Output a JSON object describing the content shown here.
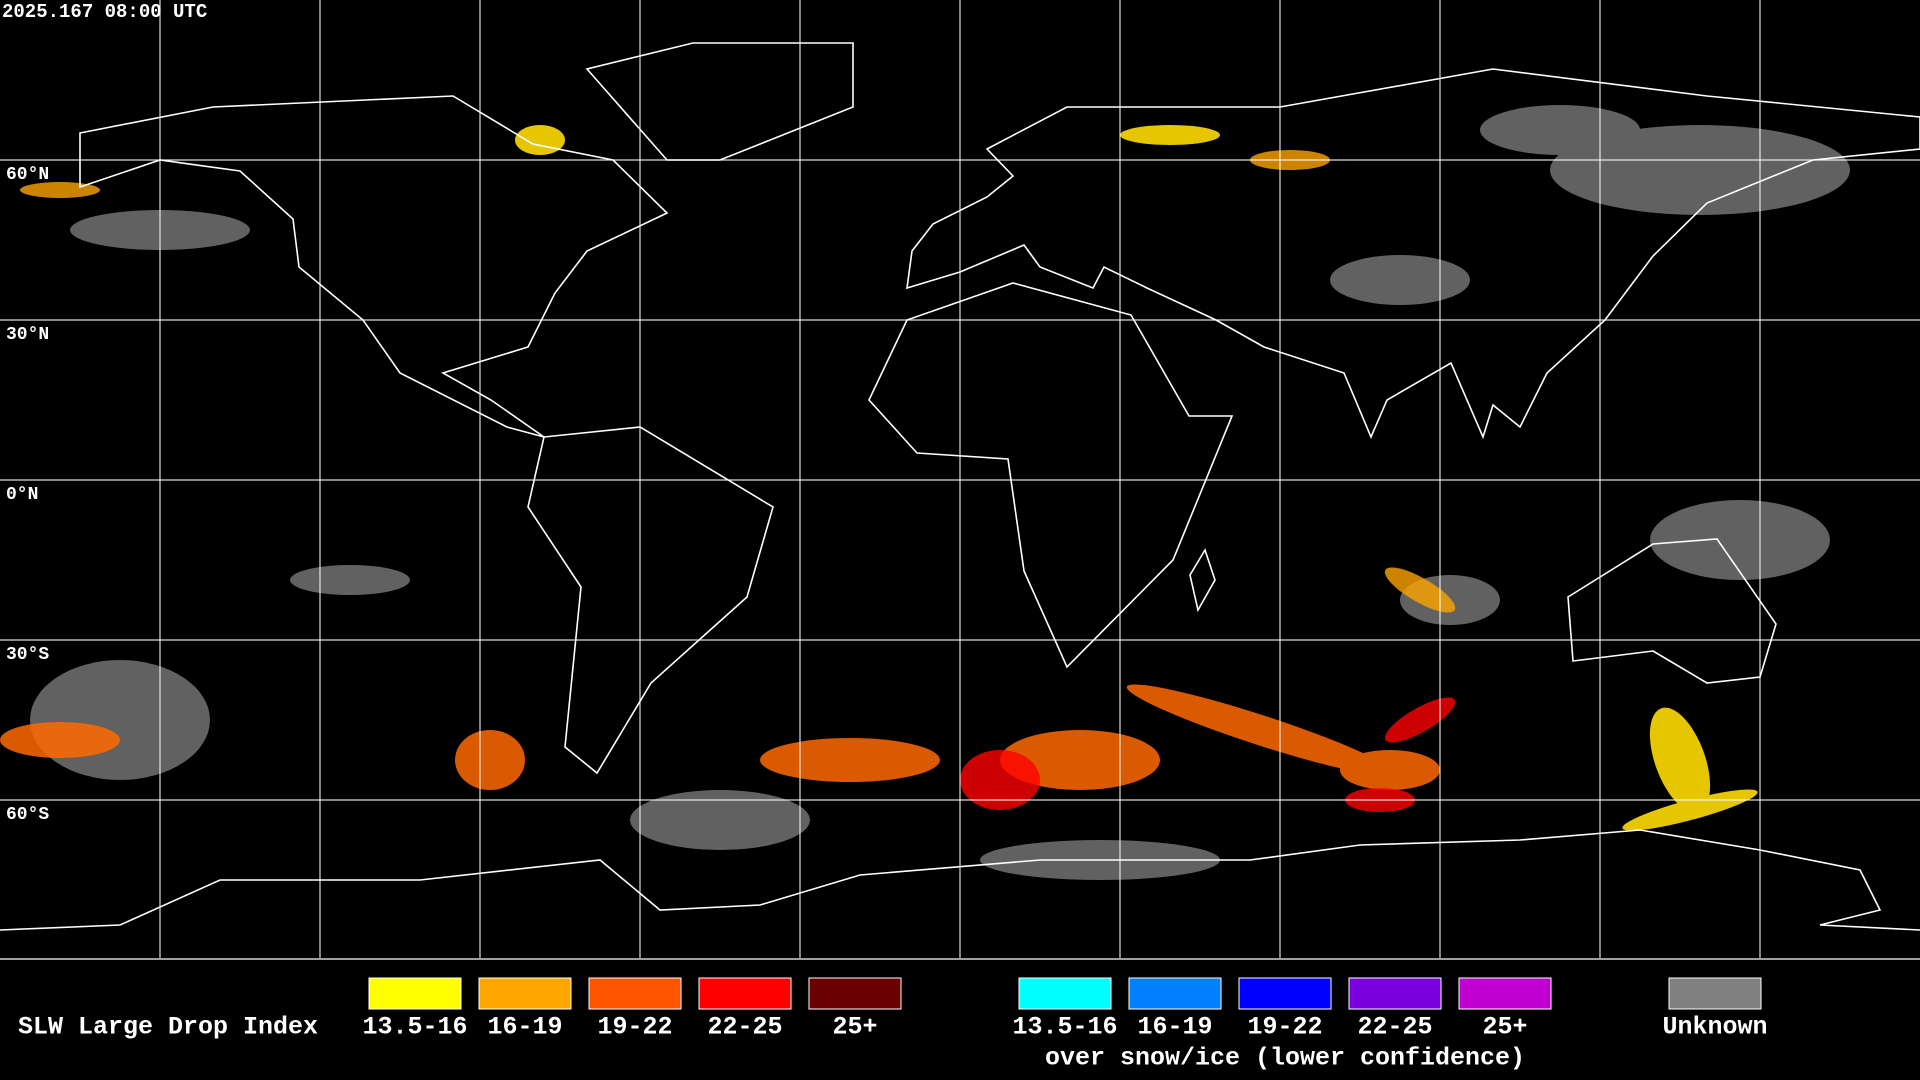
{
  "timestamp": "2025.167 08:00 UTC",
  "latitude_labels": [
    "60°N",
    "30°N",
    "0°N",
    "30°S",
    "60°S"
  ],
  "legend": {
    "title": "SLW Large Drop Index",
    "items": [
      {
        "label": "13.5-16",
        "color": "#ffff00"
      },
      {
        "label": "16-19",
        "color": "#ffa500"
      },
      {
        "label": "19-22",
        "color": "#ff5500"
      },
      {
        "label": "22-25",
        "color": "#ff0000"
      },
      {
        "label": "25+",
        "color": "#6b0000"
      }
    ],
    "snow_ice_items": [
      {
        "label": "13.5-16",
        "color": "#00ffff"
      },
      {
        "label": "16-19",
        "color": "#0080ff"
      },
      {
        "label": "19-22",
        "color": "#0000ff"
      },
      {
        "label": "22-25",
        "color": "#7a00e0"
      },
      {
        "label": "25+",
        "color": "#c000d0"
      }
    ],
    "snow_ice_note": "over snow/ice (lower confidence)",
    "unknown": {
      "label": "Unknown",
      "color": "#808080"
    }
  }
}
